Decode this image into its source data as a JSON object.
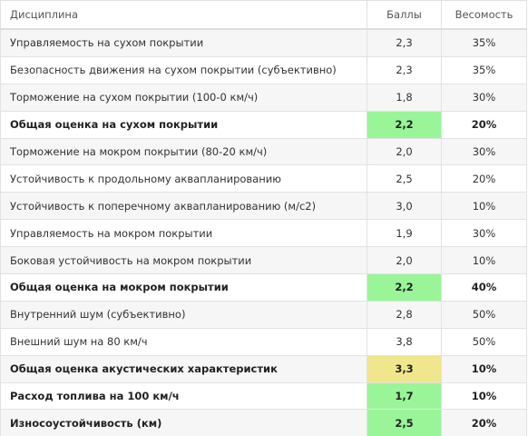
{
  "table": {
    "header": [
      "Дисциплина",
      "Баллы",
      "Весомость"
    ],
    "rows": [
      {
        "cells": [
          "Управляемость на сухом покрытии",
          "2,3",
          "35%"
        ]
      },
      {
        "cells": [
          "Безопасность движения на сухом покрытии (субъективно)",
          "2,3",
          "35%"
        ]
      },
      {
        "cells": [
          "Торможение на сухом покрытии (100-0 км/ч)",
          "1,8",
          "30%"
        ]
      },
      {
        "cells": [
          "Общая оценка на сухом покрытии",
          "2,2",
          "20%"
        ],
        "bold": true,
        "highlight": "#99f598"
      },
      {
        "cells": [
          "Торможение на мокром покрытии (80-20 км/ч)",
          "2,0",
          "30%"
        ]
      },
      {
        "cells": [
          "Устойчивость к продольному аквапланированию",
          "2,5",
          "20%"
        ]
      },
      {
        "cells": [
          "Устойчивость к поперечному аквапланированию (м/с2)",
          "3,0",
          "10%"
        ]
      },
      {
        "cells": [
          "Управляемость на мокром покрытии",
          "1,9",
          "30%"
        ]
      },
      {
        "cells": [
          "Боковая устойчивость на мокром покрытии",
          "2,0",
          "10%"
        ]
      },
      {
        "cells": [
          "Общая оценка на мокром покрытии",
          "2,2",
          "40%"
        ],
        "bold": true,
        "highlight": "#99f598"
      },
      {
        "cells": [
          "Внутренний шум (субъективно)",
          "2,8",
          "50%"
        ]
      },
      {
        "cells": [
          "Внешний шум на 80 км/ч",
          "3,8",
          "50%"
        ]
      },
      {
        "cells": [
          "Общая оценка акустических характеристик",
          "3,3",
          "10%"
        ],
        "bold": true,
        "highlight": "#f0e68c"
      },
      {
        "cells": [
          "Расход топлива на 100 км/ч",
          "1,7",
          "10%"
        ],
        "bold": true,
        "highlight": "#99f598"
      },
      {
        "cells": [
          "Износоустойчивость (км)",
          "2,5",
          "20%"
        ],
        "bold": true,
        "highlight": "#99f598"
      }
    ]
  }
}
